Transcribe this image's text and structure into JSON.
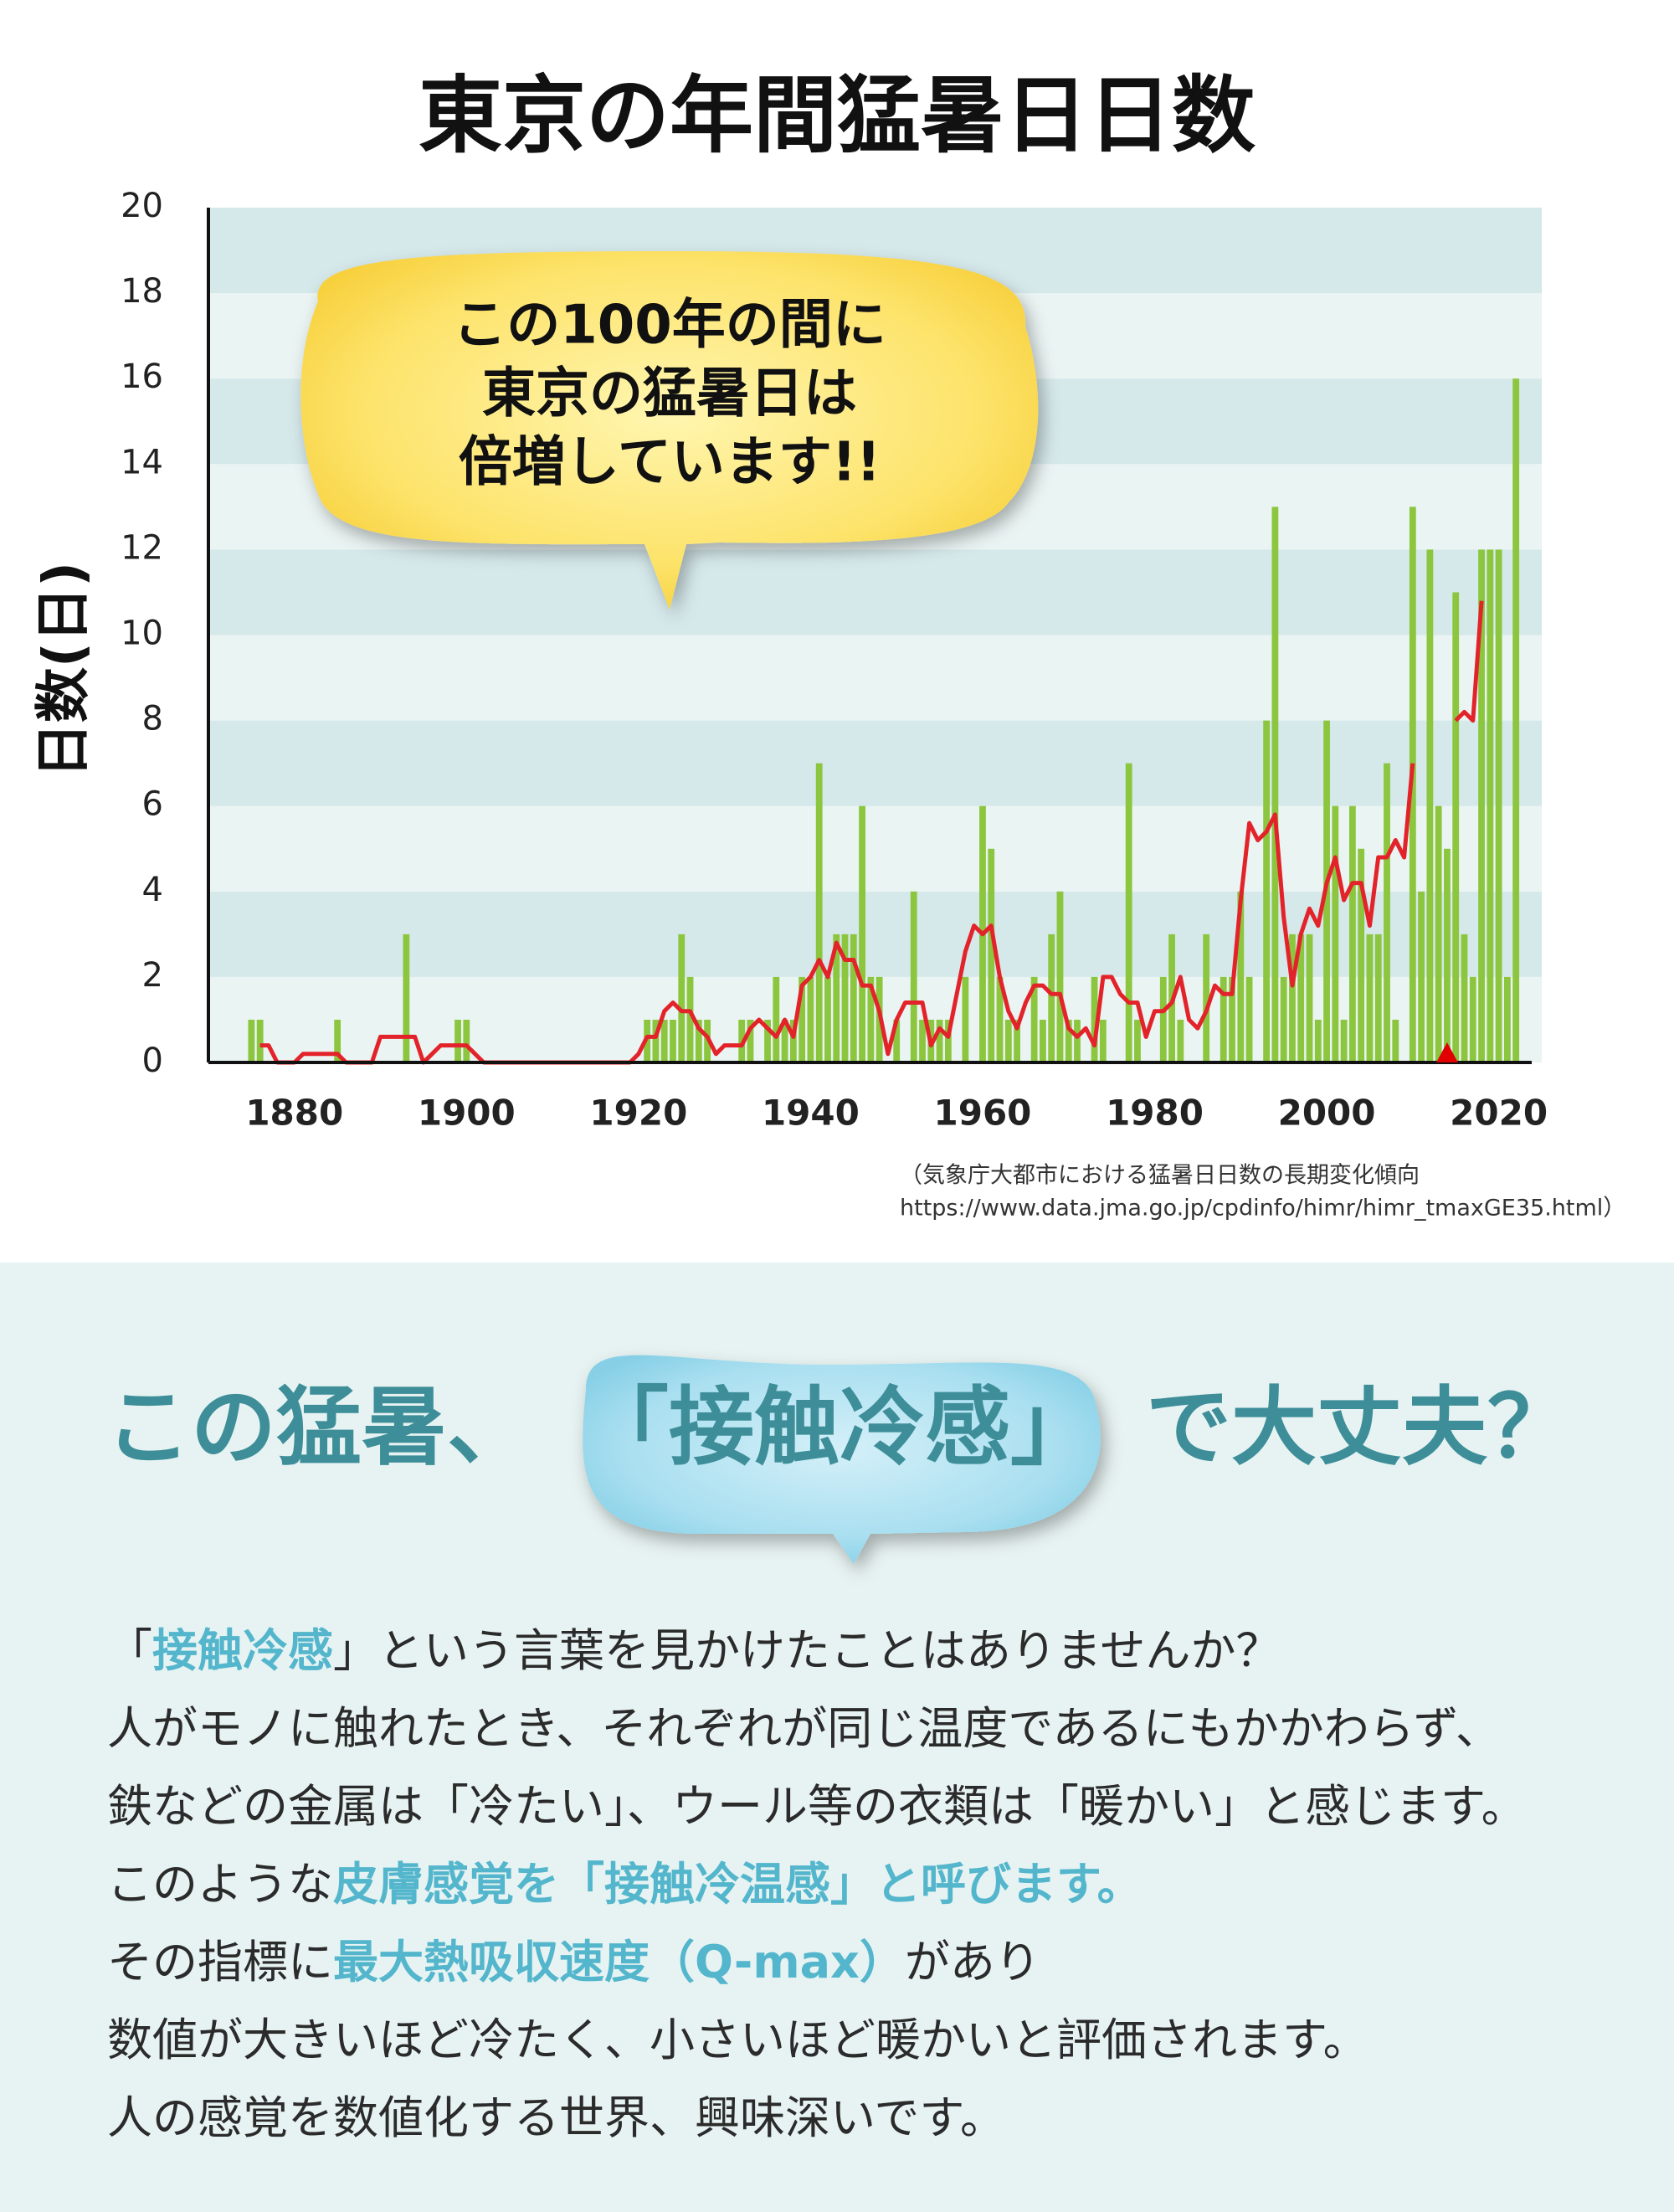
{
  "chart_data": {
    "type": "bar_line",
    "title": "東京の年間猛暑日日数",
    "y_label": "日数(日)",
    "callout": [
      "この100年の間に",
      "東京の猛暑日は",
      "倍増しています!!"
    ],
    "source": [
      "（気象庁大都市における猛暑日日数の長期変化傾向",
      "https://www.data.jma.go.jp/cpdinfo/himr/himr_tmaxGE35.html）"
    ],
    "xlim": [
      1870,
      2025
    ],
    "xticks": [
      1880,
      1900,
      1920,
      1940,
      1960,
      1980,
      2000,
      2020
    ],
    "ylim": [
      0,
      20
    ],
    "yticks": [
      0,
      2,
      4,
      6,
      8,
      10,
      12,
      14,
      16,
      18,
      20
    ],
    "grid": "banded",
    "band_colors": [
      "#eaf4f3",
      "#d5e8ea"
    ],
    "marker": {
      "x": 2014,
      "color": "#e00000"
    },
    "x": [
      1875,
      1876,
      1877,
      1878,
      1879,
      1880,
      1881,
      1882,
      1883,
      1884,
      1885,
      1886,
      1887,
      1888,
      1889,
      1890,
      1891,
      1892,
      1893,
      1894,
      1895,
      1896,
      1897,
      1898,
      1899,
      1900,
      1901,
      1902,
      1903,
      1904,
      1905,
      1906,
      1907,
      1908,
      1909,
      1910,
      1911,
      1912,
      1913,
      1914,
      1915,
      1916,
      1917,
      1918,
      1919,
      1920,
      1921,
      1922,
      1923,
      1924,
      1925,
      1926,
      1927,
      1928,
      1929,
      1930,
      1931,
      1932,
      1933,
      1934,
      1935,
      1936,
      1937,
      1938,
      1939,
      1940,
      1941,
      1942,
      1943,
      1944,
      1945,
      1946,
      1947,
      1948,
      1949,
      1950,
      1951,
      1952,
      1953,
      1954,
      1955,
      1956,
      1957,
      1958,
      1959,
      1960,
      1961,
      1962,
      1963,
      1964,
      1965,
      1966,
      1967,
      1968,
      1969,
      1970,
      1971,
      1972,
      1973,
      1974,
      1975,
      1976,
      1977,
      1978,
      1979,
      1980,
      1981,
      1982,
      1983,
      1984,
      1985,
      1986,
      1987,
      1988,
      1989,
      1990,
      1991,
      1992,
      1993,
      1994,
      1995,
      1996,
      1997,
      1998,
      1999,
      2000,
      2001,
      2002,
      2003,
      2004,
      2005,
      2006,
      2007,
      2008,
      2009,
      2010,
      2011,
      2012,
      2013,
      2014,
      2015,
      2016,
      2017,
      2018,
      2019,
      2020,
      2021,
      2022
    ],
    "series": [
      {
        "kind": "bar",
        "color": "#8cc63f",
        "values": [
          1,
          1,
          0,
          0,
          0,
          0,
          0,
          0,
          0,
          0,
          1,
          0,
          0,
          0,
          0,
          0,
          0,
          0,
          3,
          0,
          0,
          0,
          0,
          0,
          1,
          1,
          0,
          0,
          0,
          0,
          0,
          0,
          0,
          0,
          0,
          0,
          0,
          0,
          0,
          0,
          0,
          0,
          0,
          0,
          0,
          0,
          1,
          1,
          1,
          1,
          3,
          2,
          1,
          1,
          0,
          0,
          0,
          1,
          1,
          0,
          1,
          2,
          1,
          1,
          2,
          2,
          7,
          2,
          3,
          3,
          3,
          6,
          2,
          2,
          0,
          1,
          0,
          4,
          1,
          1,
          1,
          1,
          0,
          2,
          0,
          6,
          5,
          2,
          1,
          1,
          0,
          2,
          1,
          3,
          4,
          1,
          1,
          0,
          2,
          1,
          0,
          0,
          7,
          1,
          0,
          0,
          2,
          3,
          1,
          0,
          0,
          3,
          0,
          2,
          2,
          4,
          2,
          0,
          8,
          13,
          2,
          3,
          3,
          3,
          1,
          8,
          6,
          1,
          6,
          5,
          3,
          3,
          7,
          1,
          0,
          13,
          4,
          12,
          6,
          5,
          11,
          3,
          2,
          12,
          12,
          12,
          2,
          16
        ]
      },
      {
        "kind": "line",
        "color": "#e3232a",
        "values": [
          null,
          0.4,
          0.4,
          0,
          0,
          0,
          0.2,
          0.2,
          0.2,
          0.2,
          0.2,
          0,
          0,
          0,
          0,
          0.6,
          0.6,
          0.6,
          0.6,
          0.6,
          0,
          0.2,
          0.4,
          0.4,
          0.4,
          0.4,
          0.2,
          0,
          0,
          0,
          0,
          0,
          0,
          0,
          0,
          0,
          0,
          0,
          0,
          0,
          0,
          0,
          0,
          0,
          0,
          0.2,
          0.6,
          0.6,
          1.2,
          1.4,
          1.2,
          1.2,
          0.8,
          0.6,
          0.2,
          0.4,
          0.4,
          0.4,
          0.8,
          1.0,
          0.8,
          0.6,
          1.0,
          0.6,
          1.8,
          2.0,
          2.4,
          2.0,
          2.8,
          2.4,
          2.4,
          1.8,
          1.8,
          1.2,
          0.2,
          1.0,
          1.4,
          1.4,
          1.4,
          0.4,
          0.8,
          0.6,
          1.6,
          2.6,
          3.2,
          3.0,
          3.2,
          2.0,
          1.2,
          0.8,
          1.4,
          1.8,
          1.8,
          1.6,
          1.6,
          0.8,
          0.6,
          0.8,
          0.4,
          2.0,
          2.0,
          1.6,
          1.4,
          1.4,
          0.6,
          1.2,
          1.2,
          1.4,
          2.0,
          1.0,
          0.8,
          1.2,
          1.8,
          1.6,
          1.6,
          3.8,
          5.6,
          5.2,
          5.4,
          5.8,
          3.4,
          1.8,
          3.0,
          3.6,
          3.2,
          4.2,
          4.8,
          3.8,
          4.2,
          4.2,
          3.2,
          4.8,
          4.8,
          5.2,
          4.8,
          7.0,
          null,
          null,
          null,
          null,
          8.0,
          8.2,
          8.0,
          10.8,
          null,
          null,
          null,
          null
        ]
      }
    ]
  },
  "section": {
    "heading": [
      "この猛暑、",
      "「接触冷感」",
      "で大丈夫？"
    ],
    "lines": [
      [
        {
          "text": "「"
        },
        {
          "text": "接触冷感",
          "em": true
        },
        {
          "text": "」という言葉を見かけたことはありませんか？"
        }
      ],
      [
        {
          "text": "人がモノに触れたとき、それぞれが同じ温度であるにもかかわらず、"
        }
      ],
      [
        {
          "text": "鉄などの金属は「冷たい」、ウール等の衣類は「暖かい」と感じます。"
        }
      ],
      [
        {
          "text": "このような"
        },
        {
          "text": "皮膚感覚を「接触冷温感」と呼びます。",
          "em": true
        }
      ],
      [
        {
          "text": "その指標に"
        },
        {
          "text": "最大熱吸収速度（Q-max）",
          "em": true
        },
        {
          "text": "があり"
        }
      ],
      [
        {
          "text": "数値が大きいほど冷たく、小さいほど暖かいと評価されます。"
        }
      ],
      [
        {
          "text": "人の感覚を数値化する世界、興味深いです。"
        }
      ]
    ]
  }
}
